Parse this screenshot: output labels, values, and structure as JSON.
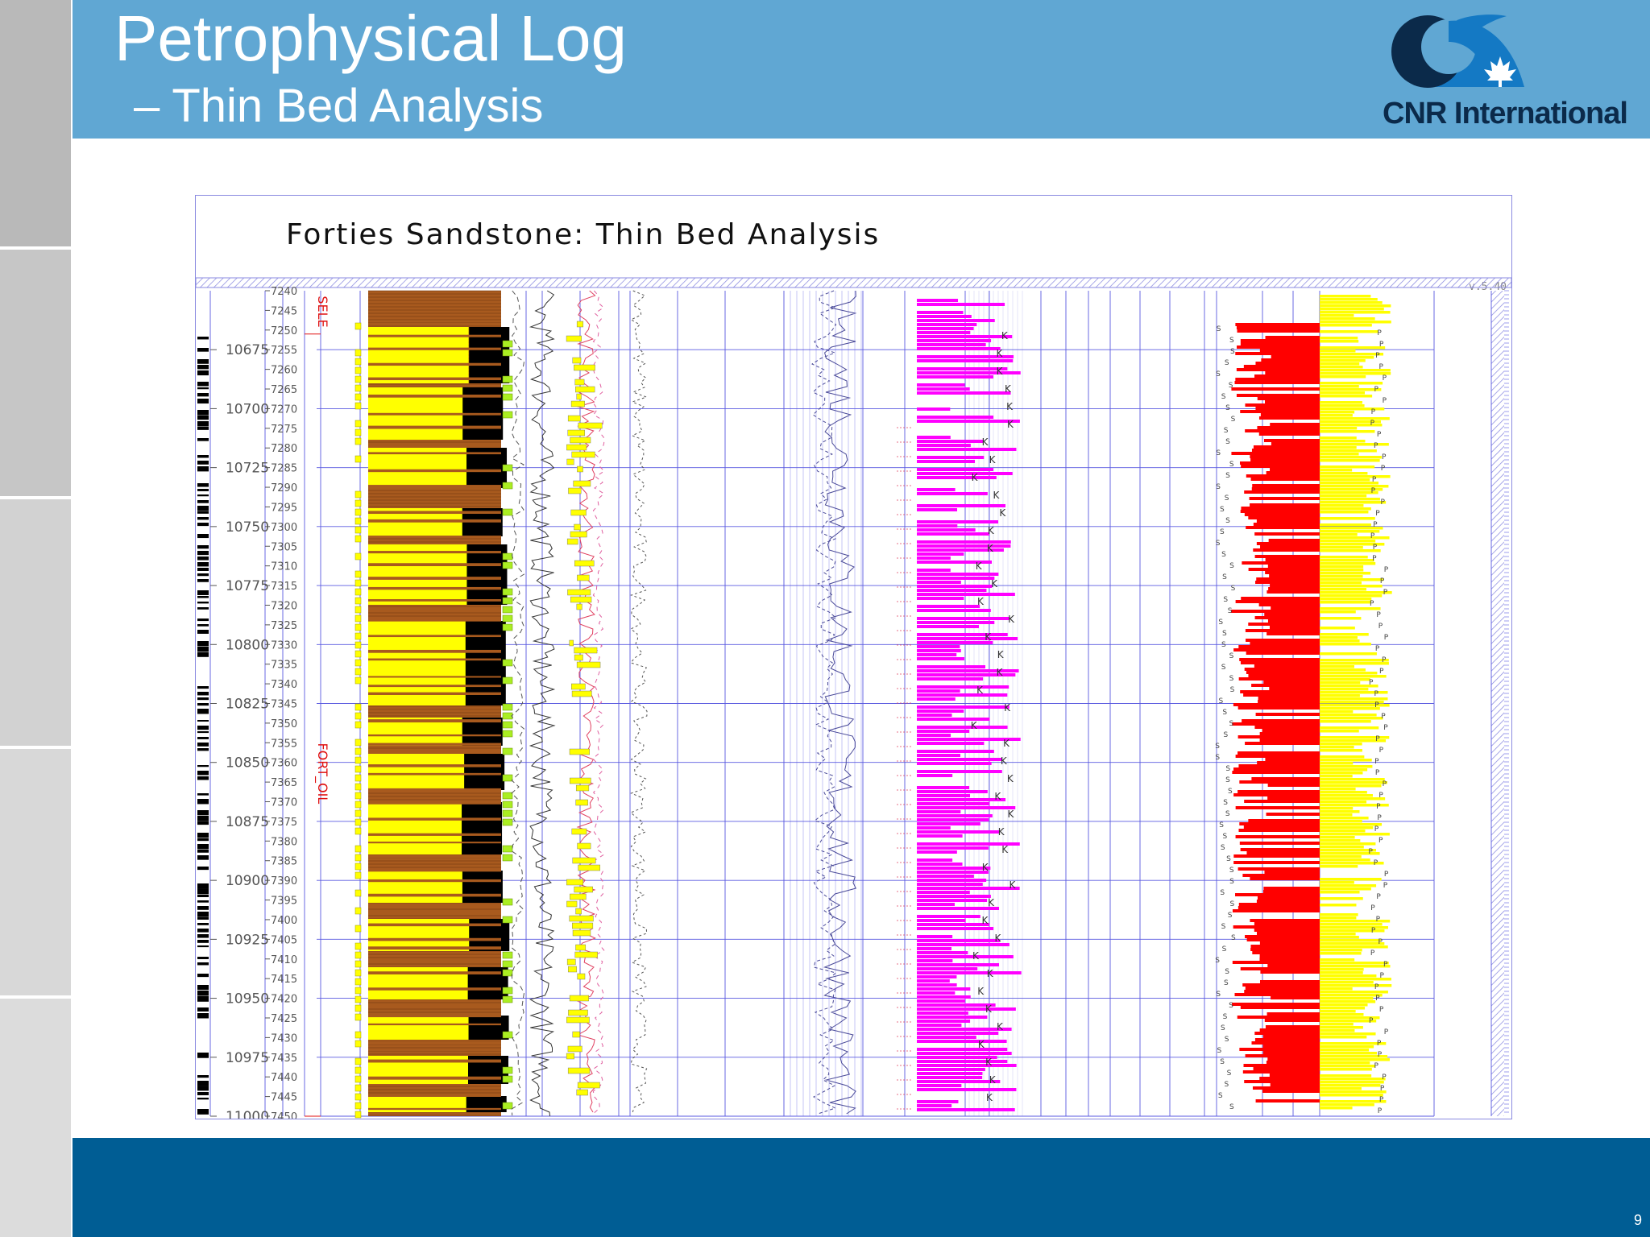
{
  "slide": {
    "title": "Petrophysical Log",
    "subtitle": "– Thin Bed Analysis",
    "logo_text": "CNR International",
    "page_number": "9",
    "colors": {
      "header": "#60a7d3",
      "footer": "#005d94",
      "sidebar_dark": "#b9b9b9",
      "sidebar_light": "#dadada",
      "logo_blue": "#1479c4",
      "logo_dark": "#0b2a4a"
    },
    "icons": [
      "cnr-logo-icon",
      "maple-leaf-icon"
    ]
  },
  "chart_data": {
    "type": "well-log",
    "title": "Forties Sandstone: Thin Bed Analysis",
    "version_label": "v.5.40",
    "zone_labels": [
      "SELE",
      "FORT_OIL"
    ],
    "zones": [
      {
        "name": "SELE",
        "top_tvd": 7240,
        "base_tvd": 7251
      },
      {
        "name": "FORT_OIL",
        "top_tvd": 7251,
        "base_tvd": 7450
      }
    ],
    "md_range": [
      10650,
      11000
    ],
    "md_ticks": [
      10675,
      10700,
      10725,
      10750,
      10775,
      10800,
      10825,
      10850,
      10875,
      10900,
      10925,
      10950,
      10975,
      11000
    ],
    "tvd_range": [
      7240,
      7450
    ],
    "tvd_ticks": [
      7240,
      7245,
      7250,
      7255,
      7260,
      7265,
      7270,
      7275,
      7280,
      7285,
      7290,
      7295,
      7300,
      7305,
      7310,
      7315,
      7320,
      7325,
      7330,
      7335,
      7340,
      7345,
      7350,
      7355,
      7360,
      7365,
      7370,
      7375,
      7380,
      7385,
      7390,
      7395,
      7400,
      7405,
      7410,
      7415,
      7420,
      7425,
      7430,
      7435,
      7440,
      7445,
      7450
    ],
    "grid": true,
    "track_colors": {
      "sand": "#ffff00",
      "shale": "#a85a1e",
      "coal": "#000000",
      "flag": "#aaee22",
      "porosity": "#ff00ff",
      "hydrocarbon": "#ff0000",
      "grid": "#5a5ae0",
      "zone_label": "#e01010"
    },
    "annotation_symbols": [
      "K",
      "S",
      "P"
    ]
  }
}
